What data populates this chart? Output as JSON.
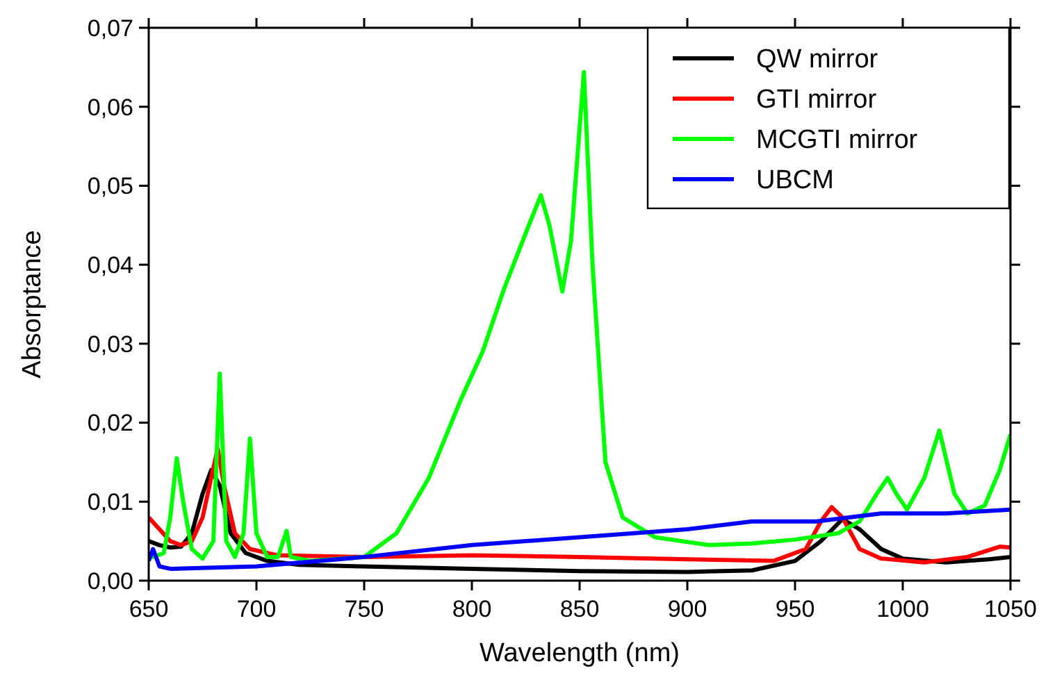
{
  "chart_data": {
    "type": "line",
    "xlabel": "Wavelength (nm)",
    "ylabel": "Absorptance",
    "xlim": [
      650,
      1050
    ],
    "ylim": [
      0,
      0.07
    ],
    "xticks": [
      650,
      700,
      750,
      800,
      850,
      900,
      950,
      1000,
      1050
    ],
    "yticks": [
      {
        "value": 0,
        "label": "0,00"
      },
      {
        "value": 0.01,
        "label": "0,01"
      },
      {
        "value": 0.02,
        "label": "0,02"
      },
      {
        "value": 0.03,
        "label": "0,03"
      },
      {
        "value": 0.04,
        "label": "0,04"
      },
      {
        "value": 0.05,
        "label": "0,05"
      },
      {
        "value": 0.06,
        "label": "0,06"
      },
      {
        "value": 0.07,
        "label": "0,07"
      }
    ],
    "legend": "top right",
    "grid": false,
    "marker": "none",
    "line_style": "solid",
    "series": [
      {
        "name": "QW mirror",
        "color": "#000000",
        "x": [
          650,
          655,
          660,
          665,
          670,
          675,
          679,
          683,
          688,
          695,
          705,
          720,
          750,
          800,
          850,
          900,
          930,
          950,
          962,
          972,
          980,
          990,
          1000,
          1020,
          1040,
          1050
        ],
        "values": [
          0.005,
          0.0045,
          0.0042,
          0.0043,
          0.006,
          0.011,
          0.014,
          0.012,
          0.006,
          0.0035,
          0.0025,
          0.002,
          0.0018,
          0.0015,
          0.0012,
          0.0011,
          0.0013,
          0.0025,
          0.005,
          0.0078,
          0.0065,
          0.004,
          0.0028,
          0.0023,
          0.0027,
          0.003
        ]
      },
      {
        "name": "GTI mirror",
        "color": "#ff0000",
        "x": [
          650,
          655,
          660,
          665,
          670,
          675,
          679,
          682,
          685,
          690,
          697,
          710,
          750,
          800,
          850,
          900,
          940,
          955,
          962,
          967,
          972,
          980,
          990,
          1010,
          1030,
          1045,
          1050
        ],
        "values": [
          0.008,
          0.0065,
          0.005,
          0.0045,
          0.005,
          0.008,
          0.013,
          0.0167,
          0.012,
          0.006,
          0.004,
          0.0032,
          0.003,
          0.0032,
          0.003,
          0.0027,
          0.0025,
          0.004,
          0.0075,
          0.0093,
          0.008,
          0.004,
          0.0028,
          0.0023,
          0.003,
          0.0043,
          0.0042
        ]
      },
      {
        "name": "MCGTI mirror",
        "color": "#00ff00",
        "x": [
          650,
          652,
          657,
          660,
          663,
          666,
          670,
          675,
          680,
          683,
          686,
          690,
          694,
          697,
          700,
          705,
          710,
          714,
          716,
          725,
          750,
          765,
          780,
          795,
          805,
          815,
          825,
          832,
          836,
          842,
          846,
          852,
          856,
          862,
          870,
          885,
          910,
          930,
          950,
          970,
          980,
          988,
          993,
          997,
          1002,
          1010,
          1017,
          1024,
          1030,
          1038,
          1045,
          1050
        ],
        "values": [
          0.0035,
          0.003,
          0.0035,
          0.008,
          0.0155,
          0.01,
          0.004,
          0.0028,
          0.005,
          0.0262,
          0.005,
          0.003,
          0.006,
          0.018,
          0.006,
          0.003,
          0.003,
          0.0063,
          0.003,
          0.0025,
          0.003,
          0.006,
          0.013,
          0.023,
          0.029,
          0.037,
          0.044,
          0.0488,
          0.045,
          0.0366,
          0.043,
          0.0644,
          0.04,
          0.015,
          0.008,
          0.0055,
          0.0045,
          0.0047,
          0.0052,
          0.006,
          0.0075,
          0.011,
          0.013,
          0.011,
          0.009,
          0.013,
          0.019,
          0.011,
          0.0085,
          0.0095,
          0.014,
          0.0185
        ]
      },
      {
        "name": "UBCM",
        "color": "#0000ff",
        "x": [
          650,
          652,
          655,
          660,
          700,
          750,
          800,
          850,
          900,
          930,
          960,
          990,
          1020,
          1050
        ],
        "values": [
          0.0025,
          0.004,
          0.0018,
          0.0015,
          0.0018,
          0.003,
          0.0045,
          0.0055,
          0.0065,
          0.0075,
          0.0075,
          0.0085,
          0.0085,
          0.009
        ]
      }
    ]
  }
}
